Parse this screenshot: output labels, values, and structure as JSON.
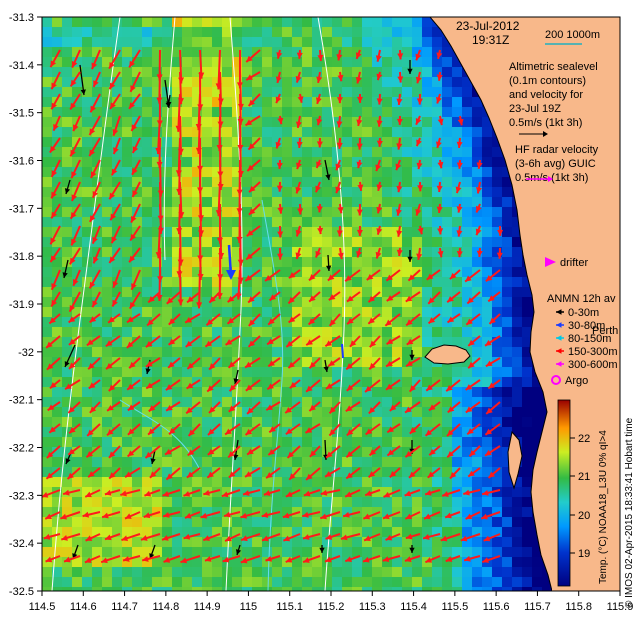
{
  "header": {
    "date": "23-Jul-2012",
    "time": "19:31Z"
  },
  "scale_bar": {
    "label": "200  1000m"
  },
  "altimetry": {
    "lines": [
      "Altimetric sealevel",
      "(0.1m contours)",
      "and velocity for",
      "23-Jul 19Z",
      "0.5m/s (1kt 3h)"
    ]
  },
  "hf_radar": {
    "lines": [
      "HF radar velocity",
      "(3-6h avg) GUIC",
      "0.5m/s (1kt 3h)"
    ]
  },
  "drifter": {
    "label": "drifter"
  },
  "anmn": {
    "title": "ANMN 12h av",
    "items": [
      {
        "label": "0-30m",
        "color": "#000000"
      },
      {
        "label": "30-80m",
        "color": "#1a3cff"
      },
      {
        "label": "80-150m",
        "color": "#00c8e6"
      },
      {
        "label": "150-300m",
        "color": "#ff0000"
      },
      {
        "label": "300-600m",
        "color": "#ff00ff"
      }
    ]
  },
  "argo": {
    "label": "Argo"
  },
  "place": {
    "label": "Perth"
  },
  "colorbar": {
    "label": "Temp. (°C) NOAA18_L3U 0% qI>4",
    "ticks": [
      "22",
      "21",
      "20",
      "19"
    ]
  },
  "credit": "© IMOS 02-Apr-2015 18:33:41 Hobart time",
  "axes": {
    "x_ticks": [
      "114.5",
      "114.6",
      "114.7",
      "114.8",
      "114.9",
      "115",
      "115.1",
      "115.2",
      "115.3",
      "115.4",
      "115.5",
      "115.6",
      "115.7",
      "115.8",
      "115.9"
    ],
    "y_ticks": [
      "-31.3",
      "-31.4",
      "-31.5",
      "-31.6",
      "-31.7",
      "-31.8",
      "-31.9",
      "-32",
      "-32.1",
      "-32.2",
      "-32.3",
      "-32.4",
      "-32.5"
    ]
  },
  "colors": {
    "land": "#f8b88a",
    "radar_arrow": "#ff1a1a",
    "altimetry_arrow": "#000000",
    "argo": "#ff00ff"
  }
}
